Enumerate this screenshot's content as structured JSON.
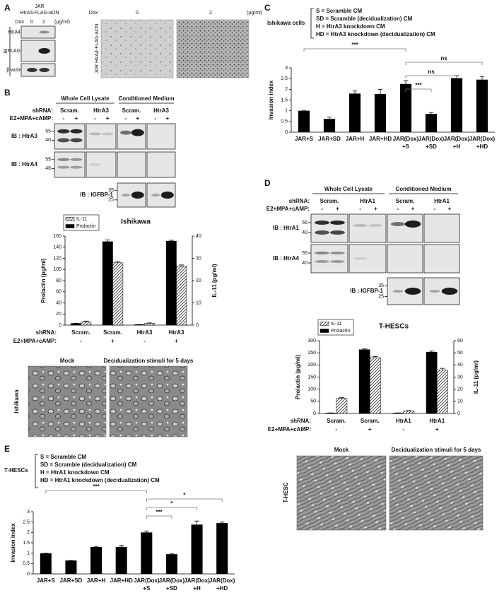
{
  "panel_a": {
    "letter": "A",
    "cell_line": "JAR",
    "construct": "HtrA4-FLAG-aON",
    "dox_label": "Dox",
    "doses": [
      "0",
      "2"
    ],
    "unit": "(μg/ml)",
    "ib_label": "IB",
    "blots": [
      "HtrA4",
      "FLAG",
      "β-actin"
    ],
    "image_title": "JAR HtrA4-FLAG-aON"
  },
  "panel_b": {
    "letter": "B",
    "fractions": [
      "Whole Cell Lysate",
      "Conditioned Medium"
    ],
    "shrna_label": "shRNA:",
    "shrna": [
      "Scram.",
      "HtrA3",
      "Scram.",
      "HtrA3"
    ],
    "treatment_label": "E2+MPA+cAMP:",
    "signs": [
      "-",
      "+"
    ],
    "blots": [
      {
        "label": "IB : HtrA3",
        "markers": [
          "55",
          "40"
        ]
      },
      {
        "label": "IB : HtrA4",
        "markers": [
          "55",
          "40"
        ]
      }
    ],
    "igfbp": {
      "label": "IB : IGFBP-1",
      "markers": [
        "35",
        "25"
      ]
    },
    "images": [
      "Mock",
      "Decidualization stimuli for 5 days"
    ],
    "image_label": "Ishikawa"
  },
  "panel_c": {
    "letter": "C"
  },
  "panel_d": {
    "letter": "D",
    "fractions": [
      "Whole Cell Lysate",
      "Conditioned Medium"
    ],
    "shrna_label": "shRNA:",
    "shrna": [
      "Scram.",
      "HtrA1",
      "Scram.",
      "HtrA1"
    ],
    "treatment_label": "E2+MPA+cAMP:",
    "signs": [
      "-",
      "+"
    ],
    "blots": [
      {
        "label": "IB : HtrA1",
        "markers": [
          "55",
          "40"
        ]
      },
      {
        "label": "IB : HtrA4",
        "markers": [
          "55",
          "40"
        ]
      }
    ],
    "igfbp": {
      "label": "IB : IGFBP-1",
      "markers": [
        "35",
        "25"
      ]
    },
    "images": [
      "Mock",
      "Decidualization stimuli for 5 days"
    ],
    "image_label": "T-HESC"
  },
  "panel_e": {
    "letter": "E"
  },
  "chart_data": [
    {
      "type": "bar",
      "title": "Ishikawa",
      "ylabel": "Prolactin (pg/ml)",
      "y2label": "IL-11 (pg/ml)",
      "categories": [
        "Scram.",
        "Scram.",
        "HtrA3",
        "HtrA3"
      ],
      "category_label": "shRNA:",
      "treatment_label": "E2+MPA+cAMP:",
      "treatment": [
        "-",
        "+",
        "-",
        "+"
      ],
      "ylim": [
        0,
        160
      ],
      "yticks": [
        0,
        20,
        40,
        60,
        80,
        100,
        120,
        140,
        160
      ],
      "y2lim": [
        0,
        40
      ],
      "y2ticks": [
        0,
        10,
        20,
        30,
        40
      ],
      "legend": "upper left",
      "series": [
        {
          "name": "Prolactin",
          "color": "#000000",
          "values": [
            3,
            150,
            1,
            151
          ],
          "errors": [
            0.5,
            3,
            0.3,
            1.5
          ]
        },
        {
          "name": "IL-11",
          "color": "#000000",
          "pattern": "hatch",
          "axis": "y2",
          "values": [
            1.5,
            28,
            0.8,
            26.5
          ],
          "errors": [
            0.3,
            0.6,
            0.2,
            0.5
          ]
        }
      ]
    },
    {
      "type": "bar",
      "ylabel": "Invasion index",
      "categories": [
        [
          "JAR+S"
        ],
        [
          "JAR+SD"
        ],
        [
          "JAR+H"
        ],
        [
          "JAR+HD"
        ],
        [
          "JAR(Dox)",
          "+S"
        ],
        [
          "JAR(Dox)",
          "+SD"
        ],
        [
          "JAR(Dox)",
          "+H"
        ],
        [
          "JAR(Dox)",
          "+HD"
        ]
      ],
      "values": [
        1.0,
        0.62,
        1.8,
        1.78,
        2.25,
        0.85,
        2.52,
        2.45
      ],
      "errors": [
        0,
        0.08,
        0.12,
        0.22,
        0.15,
        0.07,
        0.12,
        0.15
      ],
      "color": "#000000",
      "ylim": [
        0,
        3
      ],
      "yticks": [
        0,
        0.5,
        1,
        1.5,
        2,
        2.5,
        3
      ],
      "legend_title": "Ishikawa cells",
      "legend_items": [
        "S = Scramble CM",
        "SD = Scramble (decidualization) CM",
        "H = HtrA3 knockdown CM",
        "HD = HtrA3 knockdown (decidualization) CM"
      ],
      "significance": [
        {
          "from": 0,
          "to": 4,
          "label": "***"
        },
        {
          "from": 4,
          "to": 7,
          "label": "ns"
        },
        {
          "from": 4,
          "to": 6,
          "label": "ns"
        },
        {
          "from": 4,
          "to": 5,
          "label": "***"
        }
      ]
    },
    {
      "type": "bar",
      "title": "T-HESCs",
      "ylabel": "Prolactin (pg/ml)",
      "y2label": "IL-11 (pg/ml)",
      "categories": [
        "Scram.",
        "Scram.",
        "HtrA1",
        "HtrA1"
      ],
      "category_label": "shRNA:",
      "treatment_label": "E2+MPA+cAMP:",
      "treatment": [
        "-",
        "+",
        "-",
        "+"
      ],
      "ylim": [
        0,
        300
      ],
      "yticks": [
        0,
        50,
        100,
        150,
        200,
        250,
        300
      ],
      "y2lim": [
        0,
        60
      ],
      "y2ticks": [
        0,
        10,
        20,
        30,
        40,
        50,
        60
      ],
      "legend": "upper left",
      "series": [
        {
          "name": "Prolactin",
          "color": "#000000",
          "values": [
            2,
            263,
            2,
            253
          ],
          "errors": [
            0.5,
            3,
            0.5,
            4
          ]
        },
        {
          "name": "IL-11",
          "color": "#000000",
          "pattern": "hatch",
          "axis": "y2",
          "values": [
            12.5,
            46,
            2,
            36
          ],
          "errors": [
            0.5,
            1,
            0.4,
            1.2
          ]
        }
      ]
    },
    {
      "type": "bar",
      "ylabel": "Invasion index",
      "categories": [
        [
          "JAR+S"
        ],
        [
          "JAR+SD"
        ],
        [
          "JAR+H"
        ],
        [
          "JAR+HD"
        ],
        [
          "JAR(Dox)",
          "+S"
        ],
        [
          "JAR(Dox)",
          "+SD"
        ],
        [
          "JAR(Dox)",
          "+H"
        ],
        [
          "JAR(Dox)",
          "+HD"
        ]
      ],
      "values": [
        1.0,
        0.65,
        1.3,
        1.3,
        2.0,
        0.95,
        2.38,
        2.45
      ],
      "errors": [
        0,
        0,
        0.03,
        0.07,
        0.07,
        0.03,
        0.17,
        0.05
      ],
      "color": "#000000",
      "ylim": [
        0,
        3
      ],
      "yticks": [
        0,
        0.5,
        1,
        1.5,
        2,
        2.5,
        3
      ],
      "legend_title": "T-HESCs",
      "legend_items": [
        "S = Scramble CM",
        "SD = Scramble (decidualization) CM",
        "H = HtrA1 knockdown CM",
        "HD = HtrA1 knockdown (decidualization) CM"
      ],
      "significance": [
        {
          "from": 0,
          "to": 4,
          "label": "***"
        },
        {
          "from": 4,
          "to": 7,
          "label": "*"
        },
        {
          "from": 4,
          "to": 6,
          "label": "*"
        },
        {
          "from": 4,
          "to": 5,
          "label": "***"
        }
      ]
    }
  ]
}
